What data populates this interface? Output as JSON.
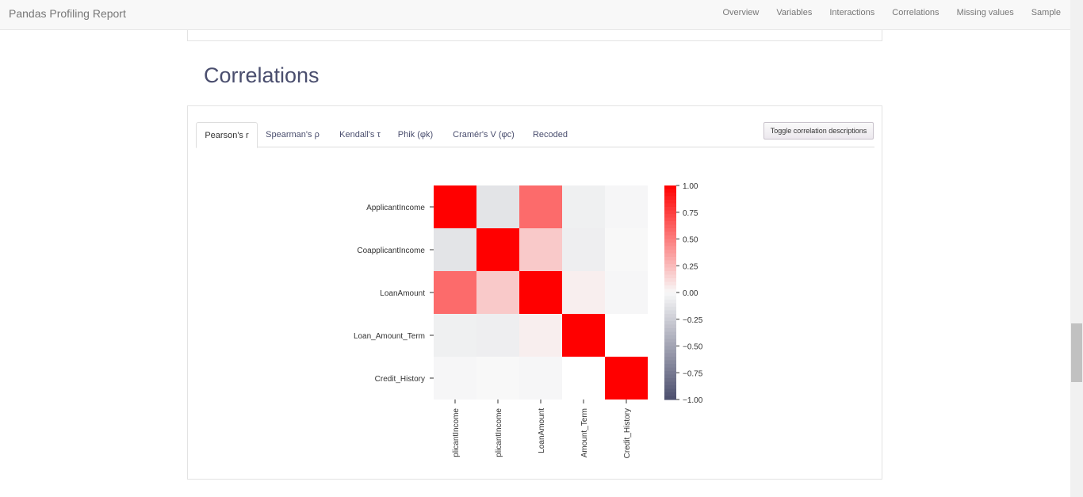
{
  "navbar": {
    "brand": "Pandas Profiling Report",
    "links": [
      "Overview",
      "Variables",
      "Interactions",
      "Correlations",
      "Missing values",
      "Sample"
    ]
  },
  "section": {
    "title": "Correlations"
  },
  "tabs": [
    "Pearson's r",
    "Spearman's ρ",
    "Kendall's τ",
    "Phik (φk)",
    "Cramér's V (φc)",
    "Recoded"
  ],
  "active_tab": "Pearson's r",
  "toggle_button": "Toggle correlation descriptions",
  "chart_data": {
    "type": "heatmap",
    "rows": [
      "ApplicantIncome",
      "CoapplicantIncome",
      "LoanAmount",
      "Loan_Amount_Term",
      "Credit_History"
    ],
    "x_tick_labels": [
      "plicantIncome",
      "plicantIncome",
      "LoanAmount",
      "Amount_Term",
      "Credit_History"
    ],
    "values": [
      [
        1.0,
        -0.12,
        0.57,
        -0.05,
        -0.01
      ],
      [
        -0.12,
        1.0,
        0.19,
        -0.06,
        0.0
      ],
      [
        0.57,
        0.19,
        1.0,
        0.04,
        -0.01
      ],
      [
        -0.05,
        -0.06,
        0.04,
        1.0,
        0.0
      ],
      [
        -0.01,
        0.0,
        -0.01,
        0.0,
        1.0
      ]
    ],
    "mask": [
      [
        false,
        false,
        false,
        false,
        false
      ],
      [
        false,
        false,
        false,
        false,
        false
      ],
      [
        false,
        false,
        false,
        false,
        false
      ],
      [
        false,
        false,
        false,
        false,
        true
      ],
      [
        false,
        false,
        false,
        true,
        false
      ]
    ],
    "colorbar": {
      "vmin": -1.0,
      "vmax": 1.0,
      "ticks": [
        "1.00",
        "0.75",
        "0.50",
        "0.25",
        "0.00",
        "−0.25",
        "−0.50",
        "−0.75",
        "−1.00"
      ],
      "colors": {
        "neg": "#4c4f6e",
        "zero": "#f8f8f8",
        "pos": "#ff0000"
      }
    }
  }
}
